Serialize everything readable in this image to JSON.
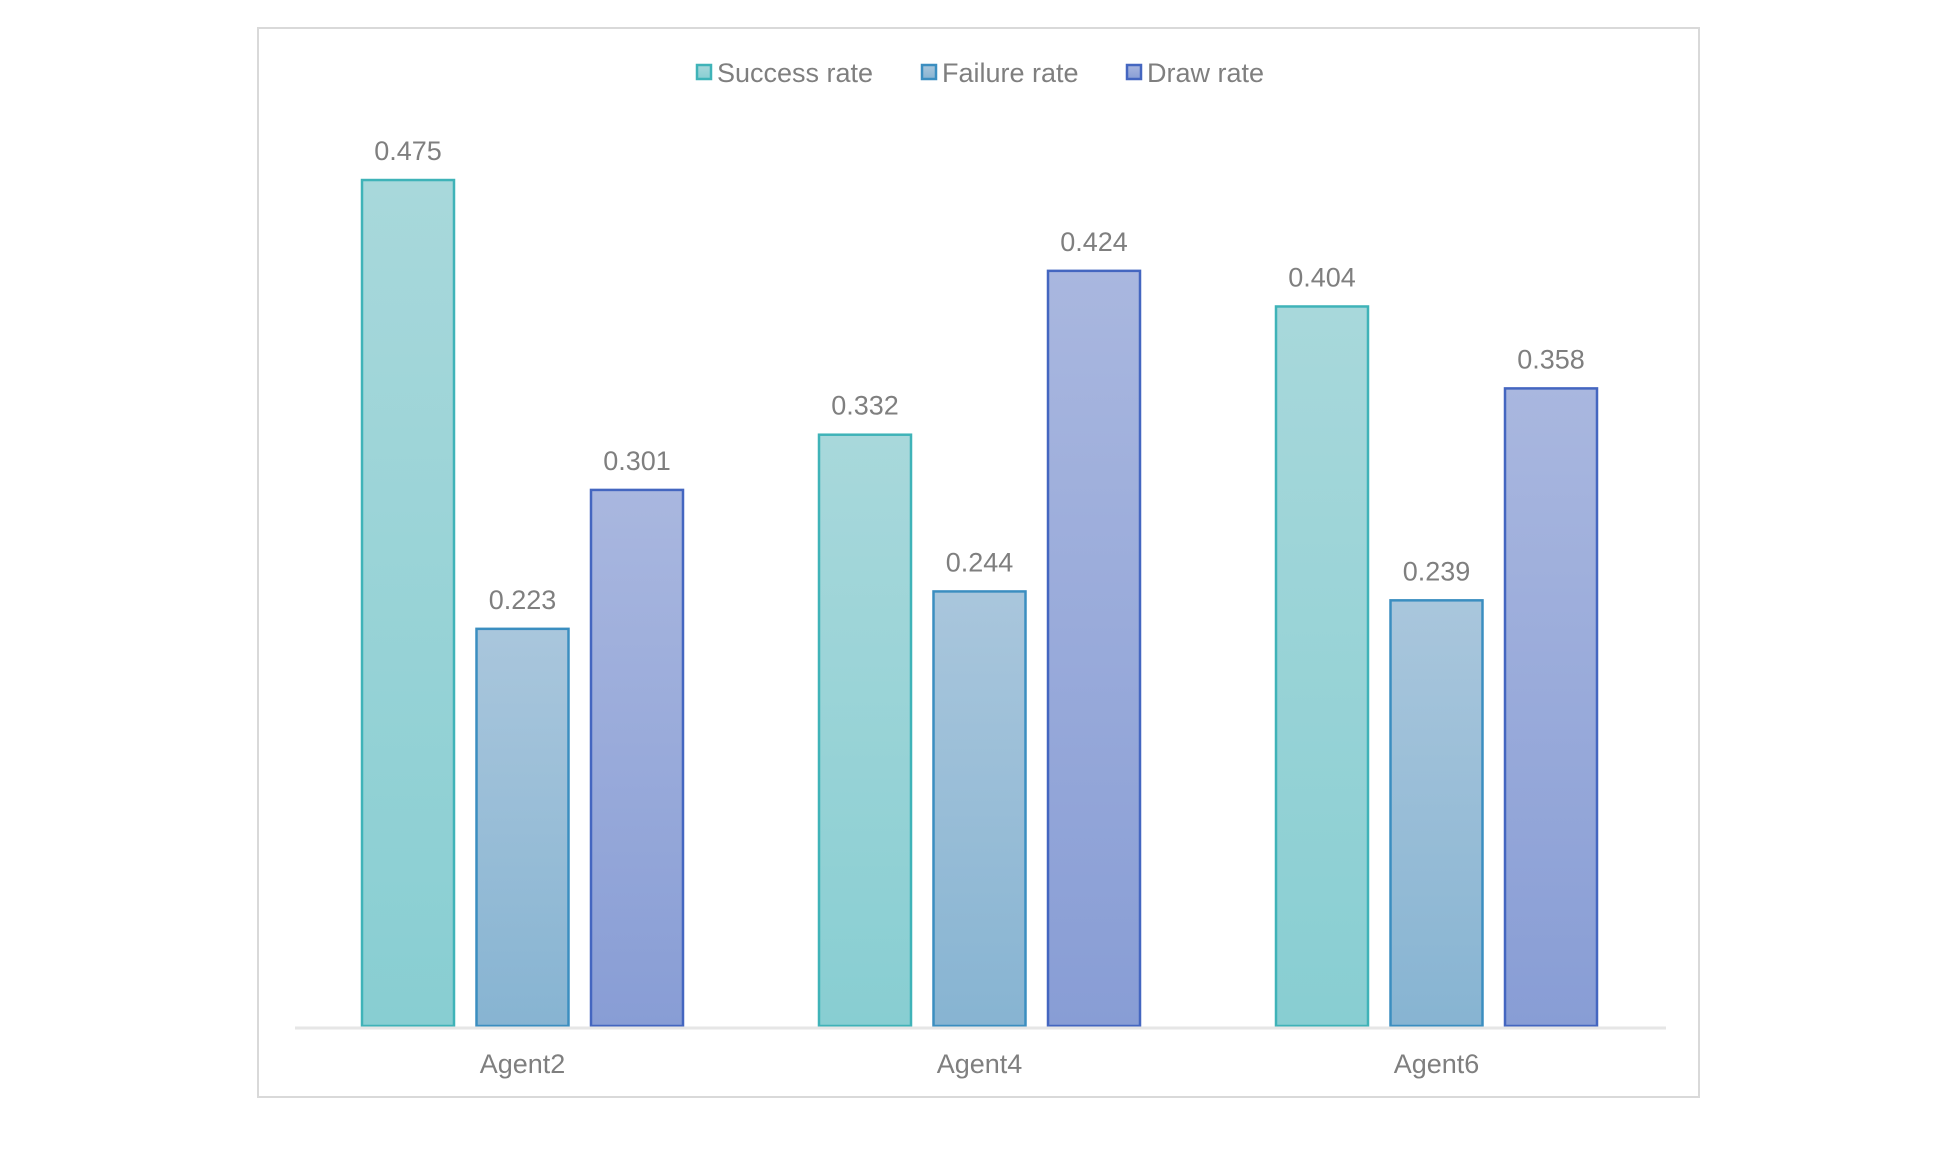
{
  "chart_data": {
    "type": "bar",
    "title": "",
    "xlabel": "",
    "ylabel": "",
    "ylim": [
      0,
      0.5
    ],
    "grid": false,
    "legend_position": "top-center",
    "categories": [
      "Agent2",
      "Agent4",
      "Agent6"
    ],
    "series": [
      {
        "name": "Success rate",
        "values": [
          0.475,
          0.332,
          0.404
        ],
        "color_top": "#a8d8db",
        "color_bottom": "#88ced2",
        "stroke": "#3fb3b8"
      },
      {
        "name": "Failure rate",
        "values": [
          0.223,
          0.244,
          0.239
        ],
        "color_top": "#a9c6dc",
        "color_bottom": "#87b4d2",
        "stroke": "#3b8ec0"
      },
      {
        "name": "Draw rate",
        "values": [
          0.301,
          0.424,
          0.358
        ],
        "color_top": "#a9b7df",
        "color_bottom": "#889dd5",
        "stroke": "#4466c0"
      }
    ],
    "data_labels": [
      [
        "0.475",
        "0.332",
        "0.404"
      ],
      [
        "0.223",
        "0.244",
        "0.239"
      ],
      [
        "0.301",
        "0.424",
        "0.358"
      ]
    ]
  }
}
